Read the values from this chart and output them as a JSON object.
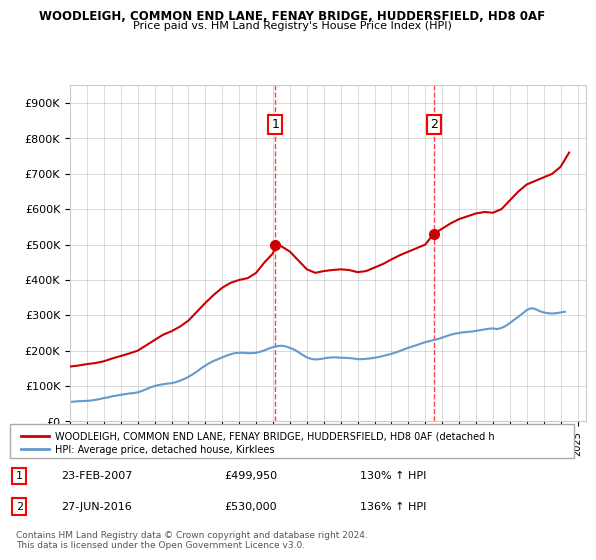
{
  "title1": "WOODLEIGH, COMMON END LANE, FENAY BRIDGE, HUDDERSFIELD, HD8 0AF",
  "title2": "Price paid vs. HM Land Registry's House Price Index (HPI)",
  "ylabel_ticks": [
    "£0",
    "£100K",
    "£200K",
    "£300K",
    "£400K",
    "£500K",
    "£600K",
    "£700K",
    "£800K",
    "£900K"
  ],
  "ytick_values": [
    0,
    100000,
    200000,
    300000,
    400000,
    500000,
    600000,
    700000,
    800000,
    900000
  ],
  "xlim": [
    1995.0,
    2025.5
  ],
  "ylim": [
    0,
    950000
  ],
  "transaction1": {
    "date_x": 2007.14,
    "price": 499950,
    "label": "1",
    "date_str": "23-FEB-2007",
    "hpi_pct": "130% ↑ HPI"
  },
  "transaction2": {
    "date_x": 2016.49,
    "price": 530000,
    "label": "2",
    "date_str": "27-JUN-2016",
    "hpi_pct": "136% ↑ HPI"
  },
  "red_line_color": "#cc0000",
  "blue_line_color": "#6699cc",
  "vline_color": "#ff4444",
  "grid_color": "#cccccc",
  "legend_label_red": "WOODLEIGH, COMMON END LANE, FENAY BRIDGE, HUDDERSFIELD, HD8 0AF (detached h",
  "legend_label_blue": "HPI: Average price, detached house, Kirklees",
  "footnote": "Contains HM Land Registry data © Crown copyright and database right 2024.\nThis data is licensed under the Open Government Licence v3.0.",
  "hpi_data_x": [
    1995.0,
    1995.25,
    1995.5,
    1995.75,
    1996.0,
    1996.25,
    1996.5,
    1996.75,
    1997.0,
    1997.25,
    1997.5,
    1997.75,
    1998.0,
    1998.25,
    1998.5,
    1998.75,
    1999.0,
    1999.25,
    1999.5,
    1999.75,
    2000.0,
    2000.25,
    2000.5,
    2000.75,
    2001.0,
    2001.25,
    2001.5,
    2001.75,
    2002.0,
    2002.25,
    2002.5,
    2002.75,
    2003.0,
    2003.25,
    2003.5,
    2003.75,
    2004.0,
    2004.25,
    2004.5,
    2004.75,
    2005.0,
    2005.25,
    2005.5,
    2005.75,
    2006.0,
    2006.25,
    2006.5,
    2006.75,
    2007.0,
    2007.25,
    2007.5,
    2007.75,
    2008.0,
    2008.25,
    2008.5,
    2008.75,
    2009.0,
    2009.25,
    2009.5,
    2009.75,
    2010.0,
    2010.25,
    2010.5,
    2010.75,
    2011.0,
    2011.25,
    2011.5,
    2011.75,
    2012.0,
    2012.25,
    2012.5,
    2012.75,
    2013.0,
    2013.25,
    2013.5,
    2013.75,
    2014.0,
    2014.25,
    2014.5,
    2014.75,
    2015.0,
    2015.25,
    2015.5,
    2015.75,
    2016.0,
    2016.25,
    2016.5,
    2016.75,
    2017.0,
    2017.25,
    2017.5,
    2017.75,
    2018.0,
    2018.25,
    2018.5,
    2018.75,
    2019.0,
    2019.25,
    2019.5,
    2019.75,
    2020.0,
    2020.25,
    2020.5,
    2020.75,
    2021.0,
    2021.25,
    2021.5,
    2021.75,
    2022.0,
    2022.25,
    2022.5,
    2022.75,
    2023.0,
    2023.25,
    2023.5,
    2023.75,
    2024.0,
    2024.25
  ],
  "hpi_data_y": [
    55000,
    56000,
    57000,
    57500,
    58000,
    59000,
    61000,
    63000,
    66000,
    68000,
    71000,
    73000,
    75000,
    77000,
    79000,
    80000,
    82000,
    86000,
    91000,
    96000,
    100000,
    103000,
    105000,
    107000,
    108000,
    111000,
    115000,
    120000,
    126000,
    133000,
    141000,
    150000,
    158000,
    165000,
    171000,
    176000,
    181000,
    186000,
    190000,
    193000,
    194000,
    194000,
    193000,
    193000,
    194000,
    197000,
    201000,
    206000,
    210000,
    213000,
    214000,
    212000,
    208000,
    203000,
    196000,
    188000,
    181000,
    177000,
    175000,
    176000,
    178000,
    180000,
    181000,
    181000,
    180000,
    180000,
    179000,
    178000,
    176000,
    176000,
    177000,
    178000,
    180000,
    182000,
    185000,
    188000,
    191000,
    195000,
    199000,
    204000,
    208000,
    212000,
    216000,
    220000,
    224000,
    227000,
    230000,
    233000,
    237000,
    241000,
    245000,
    248000,
    250000,
    252000,
    253000,
    254000,
    256000,
    258000,
    260000,
    262000,
    263000,
    261000,
    264000,
    270000,
    278000,
    287000,
    296000,
    305000,
    315000,
    320000,
    318000,
    312000,
    308000,
    306000,
    305000,
    306000,
    308000,
    310000
  ],
  "red_data_x": [
    1995.0,
    1995.5,
    1996.0,
    1996.5,
    1997.0,
    1997.5,
    1998.0,
    1998.5,
    1999.0,
    1999.5,
    2000.0,
    2000.5,
    2001.0,
    2001.5,
    2002.0,
    2002.5,
    2003.0,
    2003.5,
    2004.0,
    2004.5,
    2005.0,
    2005.5,
    2006.0,
    2006.5,
    2007.0,
    2007.14,
    2007.5,
    2008.0,
    2008.5,
    2009.0,
    2009.5,
    2010.0,
    2010.5,
    2011.0,
    2011.5,
    2012.0,
    2012.5,
    2013.0,
    2013.5,
    2014.0,
    2014.5,
    2015.0,
    2015.5,
    2016.0,
    2016.49,
    2017.0,
    2017.5,
    2018.0,
    2018.5,
    2019.0,
    2019.5,
    2020.0,
    2020.5,
    2021.0,
    2021.5,
    2022.0,
    2022.5,
    2023.0,
    2023.5,
    2024.0,
    2024.5
  ],
  "red_data_y": [
    155000,
    158000,
    162000,
    165000,
    170000,
    178000,
    185000,
    192000,
    200000,
    215000,
    230000,
    245000,
    255000,
    268000,
    285000,
    310000,
    335000,
    358000,
    378000,
    392000,
    400000,
    405000,
    420000,
    450000,
    475000,
    499950,
    495000,
    480000,
    455000,
    430000,
    420000,
    425000,
    428000,
    430000,
    428000,
    422000,
    425000,
    435000,
    445000,
    458000,
    470000,
    480000,
    490000,
    500000,
    530000,
    545000,
    560000,
    572000,
    580000,
    588000,
    592000,
    590000,
    600000,
    625000,
    650000,
    670000,
    680000,
    690000,
    700000,
    720000,
    760000
  ]
}
